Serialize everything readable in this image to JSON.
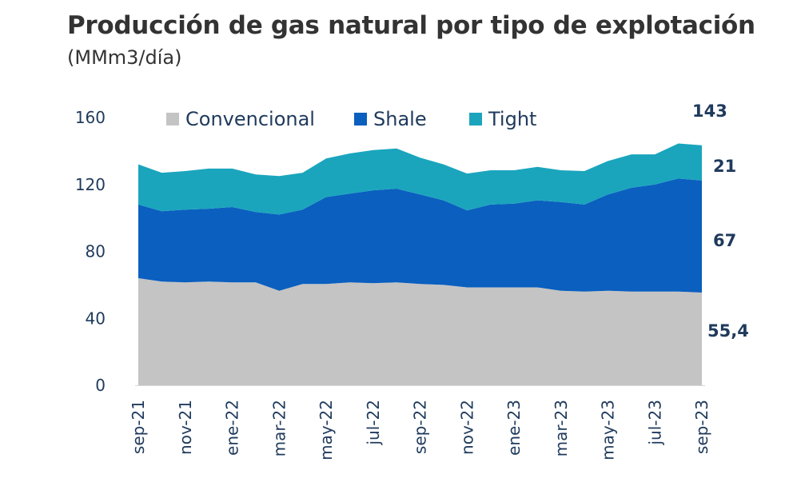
{
  "title": "Producción de gas natural por tipo de explotación",
  "subtitle": "(MMm3/día)",
  "chart_data": {
    "type": "area",
    "stacked": true,
    "title": "Producción de gas natural por tipo de explotación",
    "subtitle": "(MMm3/día)",
    "ylim": [
      0,
      160
    ],
    "yticks": [
      0,
      40,
      80,
      120,
      160
    ],
    "x_tick_labels": [
      "sep-21",
      "nov-21",
      "ene-22",
      "mar-22",
      "may-22",
      "jul-22",
      "sep-22",
      "nov-22",
      "ene-23",
      "mar-23",
      "may-23",
      "jul-23",
      "sep-23"
    ],
    "x": [
      "sep-21",
      "oct-21",
      "nov-21",
      "dic-21",
      "ene-22",
      "feb-22",
      "mar-22",
      "abr-22",
      "may-22",
      "jun-22",
      "jul-22",
      "ago-22",
      "sep-22",
      "oct-22",
      "nov-22",
      "dic-22",
      "ene-23",
      "feb-23",
      "mar-23",
      "abr-23",
      "may-23",
      "jun-23",
      "jul-23",
      "ago-23",
      "sep-23"
    ],
    "series": [
      {
        "name": "Convencional",
        "color": "#c4c4c4",
        "values": [
          64,
          62,
          61.5,
          62,
          61.5,
          61.5,
          56.5,
          60.5,
          60.5,
          61.5,
          61,
          61.5,
          60.5,
          60,
          58.5,
          58.5,
          58.5,
          58.5,
          56.5,
          56,
          56.5,
          56,
          56,
          56,
          55.4
        ]
      },
      {
        "name": "Shale",
        "color": "#0a5fbf",
        "values": [
          44,
          42,
          43.5,
          43.5,
          45,
          42,
          45.5,
          44.5,
          52,
          53,
          55.5,
          56,
          53.5,
          50.5,
          46,
          49.5,
          50,
          52,
          53,
          52,
          57.5,
          62,
          64,
          67.5,
          67
        ]
      },
      {
        "name": "Tight",
        "color": "#1aa5bd",
        "values": [
          24,
          23,
          23,
          24,
          23,
          22.5,
          23,
          22,
          23,
          24,
          24,
          24,
          22,
          21.5,
          22,
          20.5,
          20,
          20,
          19,
          20,
          20,
          20,
          18,
          21,
          21
        ]
      }
    ],
    "end_labels": {
      "total": "143",
      "tight": "21",
      "shale": "67",
      "convencional": "55,4"
    },
    "legend": {
      "position": "top",
      "entries": [
        "Convencional",
        "Shale",
        "Tight"
      ]
    },
    "grid": false
  }
}
